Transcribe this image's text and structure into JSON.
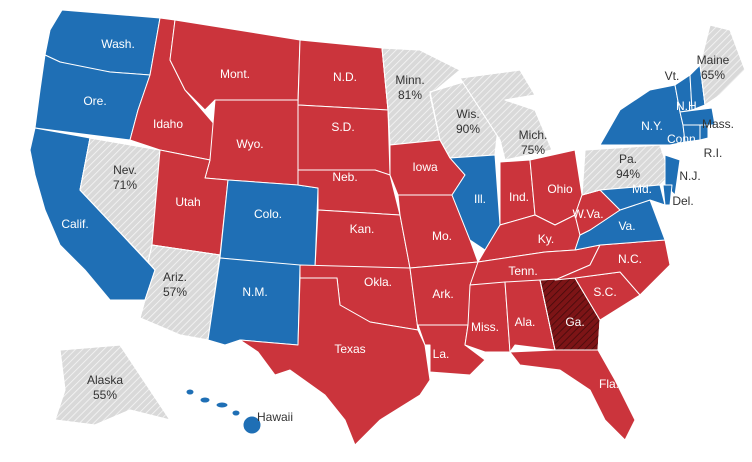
{
  "states": [
    {
      "label": "Wash.",
      "color": "#1f6fb5"
    },
    {
      "label": "Ore.",
      "color": "#1f6fb5"
    },
    {
      "label": "Calif.",
      "color": "#1f6fb5"
    },
    {
      "label": "Nev.",
      "pct": "71%",
      "color": "#d9d9d9",
      "hatched": true
    },
    {
      "label": "Idaho",
      "color": "#cb343c"
    },
    {
      "label": "Mont.",
      "color": "#cb343c"
    },
    {
      "label": "Wyo.",
      "color": "#cb343c"
    },
    {
      "label": "Utah",
      "color": "#cb343c"
    },
    {
      "label": "Colo.",
      "color": "#1f6fb5"
    },
    {
      "label": "Ariz.",
      "pct": "57%",
      "color": "#d9d9d9",
      "hatched": true
    },
    {
      "label": "N.M.",
      "color": "#1f6fb5"
    },
    {
      "label": "N.D.",
      "color": "#cb343c"
    },
    {
      "label": "S.D.",
      "color": "#cb343c"
    },
    {
      "label": "Neb.",
      "color": "#cb343c"
    },
    {
      "label": "Kan.",
      "color": "#cb343c"
    },
    {
      "label": "Okla.",
      "color": "#cb343c"
    },
    {
      "label": "Texas",
      "color": "#cb343c"
    },
    {
      "label": "Minn.",
      "pct": "81%",
      "color": "#d9d9d9",
      "hatched": true
    },
    {
      "label": "Iowa",
      "color": "#cb343c"
    },
    {
      "label": "Mo.",
      "color": "#cb343c"
    },
    {
      "label": "Ark.",
      "color": "#cb343c"
    },
    {
      "label": "La.",
      "color": "#cb343c"
    },
    {
      "label": "Wis.",
      "pct": "90%",
      "color": "#d9d9d9",
      "hatched": true
    },
    {
      "label": "Ill.",
      "color": "#1f6fb5"
    },
    {
      "label": "Mich.",
      "pct": "75%",
      "color": "#d9d9d9",
      "hatched": true
    },
    {
      "label": "Ind.",
      "color": "#cb343c"
    },
    {
      "label": "Ohio",
      "color": "#cb343c"
    },
    {
      "label": "Ky.",
      "color": "#cb343c"
    },
    {
      "label": "Tenn.",
      "color": "#cb343c"
    },
    {
      "label": "Miss.",
      "color": "#cb343c"
    },
    {
      "label": "Ala.",
      "color": "#cb343c"
    },
    {
      "label": "Ga.",
      "color": "#7d1416",
      "hatched": true
    },
    {
      "label": "Fla.",
      "color": "#cb343c"
    },
    {
      "label": "S.C.",
      "color": "#cb343c"
    },
    {
      "label": "N.C.",
      "color": "#cb343c"
    },
    {
      "label": "Va.",
      "color": "#1f6fb5"
    },
    {
      "label": "W.Va.",
      "color": "#cb343c"
    },
    {
      "label": "Pa.",
      "pct": "94%",
      "color": "#d9d9d9",
      "hatched": true
    },
    {
      "label": "N.Y.",
      "color": "#1f6fb5"
    },
    {
      "label": "N.J.",
      "color": "#1f6fb5"
    },
    {
      "label": "Md.",
      "color": "#1f6fb5"
    },
    {
      "label": "Del.",
      "color": "#1f6fb5"
    },
    {
      "label": "Vt.",
      "color": "#1f6fb5"
    },
    {
      "label": "N.H.",
      "color": "#1f6fb5"
    },
    {
      "label": "Maine",
      "pct": "65%",
      "color": "#d9d9d9",
      "hatched": true
    },
    {
      "label": "Mass.",
      "color": "#1f6fb5"
    },
    {
      "label": "Conn.",
      "color": "#1f6fb5"
    },
    {
      "label": "R.I.",
      "color": "#1f6fb5"
    },
    {
      "label": "Alaska",
      "pct": "55%",
      "color": "#d9d9d9",
      "hatched": true
    },
    {
      "label": "Hawaii",
      "color": "#1f6fb5"
    }
  ]
}
